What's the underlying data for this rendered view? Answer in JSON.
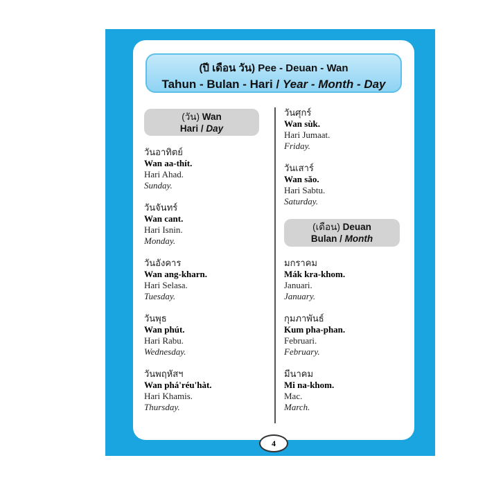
{
  "title": {
    "line1": "(ปี เดือน วัน) Pee - Deuan - Wan",
    "line2_plain": "Tahun - Bulan - Hari / ",
    "line2_italic": "Year - Month - Day"
  },
  "days_section": {
    "thai": "(วัน)",
    "label1": " Wan",
    "label2_plain": "Hari / ",
    "label2_italic": "Day"
  },
  "months_section": {
    "thai": "(เดือน)",
    "label1": " Deuan",
    "label2_plain": "Bulan / ",
    "label2_italic": "Month"
  },
  "days_left": [
    {
      "thai": "วันอาทิตย์",
      "roman": "Wan aa-thít.",
      "malay": "Hari Ahad.",
      "english": "Sunday."
    },
    {
      "thai": "วันจันทร์",
      "roman": "Wan cant.",
      "malay": "Hari Isnin.",
      "english": "Monday."
    },
    {
      "thai": "วันอังคาร",
      "roman": "Wan ang-kharn.",
      "malay": "Hari Selasa.",
      "english": "Tuesday."
    },
    {
      "thai": "วันพุธ",
      "roman": "Wan phút.",
      "malay": "Hari Rabu.",
      "english": "Wednesday."
    },
    {
      "thai": "วันพฤหัสฯ",
      "roman": "Wan phá'réu'hàt.",
      "malay": "Hari Khamis.",
      "english": "Thursday."
    }
  ],
  "days_right": [
    {
      "thai": "วันศุกร์",
      "roman": "Wan sùk.",
      "malay": "Hari Jumaat.",
      "english": "Friday."
    },
    {
      "thai": "วันเสาร์",
      "roman": "Wan săo.",
      "malay": "Hari Sabtu.",
      "english": "Saturday."
    }
  ],
  "months": [
    {
      "thai": "มกราคม",
      "roman": "Mák kra-khom.",
      "malay": "Januari.",
      "english": "January."
    },
    {
      "thai": "กุมภาพันธ์",
      "roman": "Kum pha-phan.",
      "malay": "Februari.",
      "english": "February."
    },
    {
      "thai": "มีนาคม",
      "roman": "Mi na-khom.",
      "malay": "Mac.",
      "english": "March."
    }
  ],
  "page_number": "4",
  "colors": {
    "background": "#1ba5e0",
    "title_box": "#a8ddf6",
    "section_box": "#d3d3d3"
  }
}
